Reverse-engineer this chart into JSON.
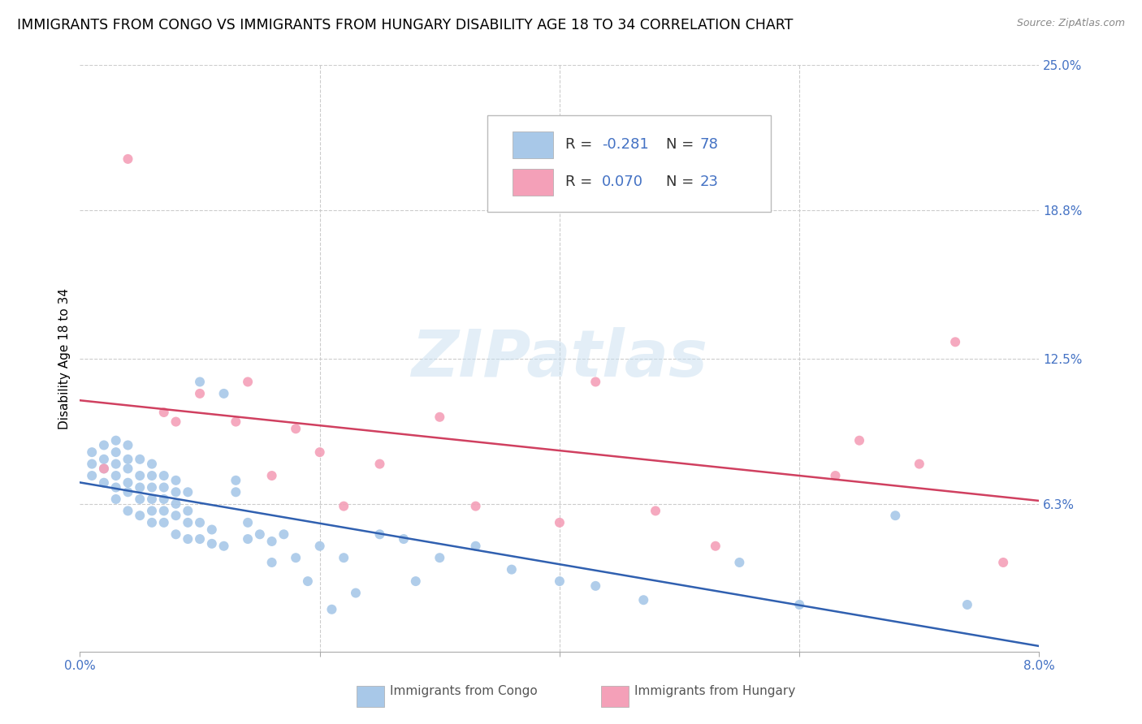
{
  "title": "IMMIGRANTS FROM CONGO VS IMMIGRANTS FROM HUNGARY DISABILITY AGE 18 TO 34 CORRELATION CHART",
  "source": "Source: ZipAtlas.com",
  "ylabel": "Disability Age 18 to 34",
  "xlim": [
    0.0,
    0.08
  ],
  "ylim": [
    0.0,
    0.25
  ],
  "x_ticks": [
    0.0,
    0.02,
    0.04,
    0.06,
    0.08
  ],
  "x_tick_labels": [
    "0.0%",
    "",
    "",
    "",
    "8.0%"
  ],
  "y_tick_labels_right": [
    "6.3%",
    "12.5%",
    "18.8%",
    "25.0%"
  ],
  "y_ticks_right": [
    0.063,
    0.125,
    0.188,
    0.25
  ],
  "congo_color": "#a8c8e8",
  "hungary_color": "#f4a0b8",
  "congo_line_color": "#3060b0",
  "hungary_line_color": "#d04060",
  "legend_box_color_congo": "#a8c8e8",
  "legend_box_color_hungary": "#f4a0b8",
  "watermark": "ZIPatlas",
  "label_congo": "Immigrants from Congo",
  "label_hungary": "Immigrants from Hungary",
  "congo_R": -0.281,
  "congo_N": 78,
  "hungary_R": 0.07,
  "hungary_N": 23,
  "grid_color": "#cccccc",
  "background_color": "#ffffff",
  "title_fontsize": 12.5,
  "axis_label_color": "#4472c4",
  "text_color": "#333333",
  "congo_scatter_x": [
    0.001,
    0.001,
    0.001,
    0.002,
    0.002,
    0.002,
    0.002,
    0.003,
    0.003,
    0.003,
    0.003,
    0.003,
    0.003,
    0.004,
    0.004,
    0.004,
    0.004,
    0.004,
    0.004,
    0.005,
    0.005,
    0.005,
    0.005,
    0.005,
    0.006,
    0.006,
    0.006,
    0.006,
    0.006,
    0.006,
    0.007,
    0.007,
    0.007,
    0.007,
    0.007,
    0.008,
    0.008,
    0.008,
    0.008,
    0.008,
    0.009,
    0.009,
    0.009,
    0.009,
    0.01,
    0.01,
    0.01,
    0.011,
    0.011,
    0.012,
    0.012,
    0.013,
    0.013,
    0.014,
    0.014,
    0.015,
    0.016,
    0.016,
    0.017,
    0.018,
    0.019,
    0.02,
    0.021,
    0.022,
    0.023,
    0.025,
    0.027,
    0.028,
    0.03,
    0.033,
    0.036,
    0.04,
    0.043,
    0.047,
    0.055,
    0.06,
    0.068,
    0.074
  ],
  "congo_scatter_y": [
    0.075,
    0.08,
    0.085,
    0.072,
    0.078,
    0.082,
    0.088,
    0.065,
    0.07,
    0.075,
    0.08,
    0.085,
    0.09,
    0.06,
    0.068,
    0.072,
    0.078,
    0.082,
    0.088,
    0.058,
    0.065,
    0.07,
    0.075,
    0.082,
    0.055,
    0.06,
    0.065,
    0.07,
    0.075,
    0.08,
    0.055,
    0.06,
    0.065,
    0.07,
    0.075,
    0.05,
    0.058,
    0.063,
    0.068,
    0.073,
    0.048,
    0.055,
    0.06,
    0.068,
    0.048,
    0.055,
    0.115,
    0.046,
    0.052,
    0.045,
    0.11,
    0.068,
    0.073,
    0.048,
    0.055,
    0.05,
    0.047,
    0.038,
    0.05,
    0.04,
    0.03,
    0.045,
    0.018,
    0.04,
    0.025,
    0.05,
    0.048,
    0.03,
    0.04,
    0.045,
    0.035,
    0.03,
    0.028,
    0.022,
    0.038,
    0.02,
    0.058,
    0.02
  ],
  "hungary_scatter_x": [
    0.002,
    0.004,
    0.007,
    0.008,
    0.01,
    0.013,
    0.014,
    0.016,
    0.018,
    0.02,
    0.022,
    0.025,
    0.03,
    0.033,
    0.04,
    0.043,
    0.048,
    0.053,
    0.063,
    0.065,
    0.07,
    0.073,
    0.077
  ],
  "hungary_scatter_y": [
    0.078,
    0.21,
    0.102,
    0.098,
    0.11,
    0.098,
    0.115,
    0.075,
    0.095,
    0.085,
    0.062,
    0.08,
    0.1,
    0.062,
    0.055,
    0.115,
    0.06,
    0.045,
    0.075,
    0.09,
    0.08,
    0.132,
    0.038
  ],
  "marker_size": 75
}
